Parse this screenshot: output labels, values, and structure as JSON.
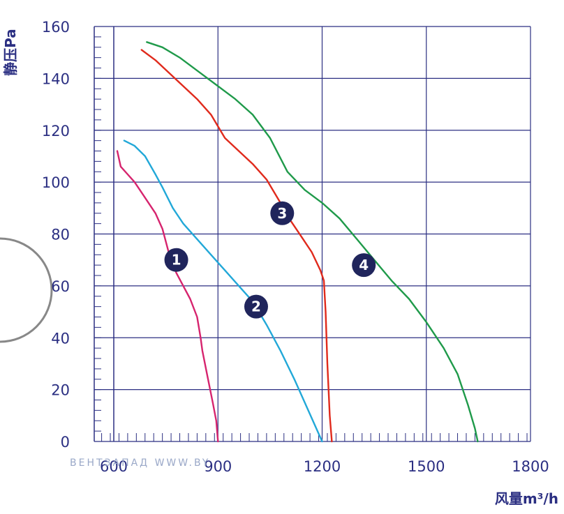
{
  "chart_data": {
    "type": "line",
    "ylabel": "静压Pa",
    "xlabel": "风量m³/h",
    "xlim": [
      600,
      1800
    ],
    "ylim": [
      0,
      160
    ],
    "x_ticks": [
      600,
      900,
      1200,
      1500,
      1800
    ],
    "y_ticks": [
      0,
      20,
      40,
      60,
      80,
      100,
      120,
      140,
      160
    ],
    "grid": true,
    "colors": {
      "axis_text": "#2b2f82",
      "grid": "#2b2f82",
      "marker_fill": "#20255c"
    },
    "series": [
      {
        "marker": "1",
        "color": "#d6246e",
        "marker_at": [
          780,
          70
        ],
        "points": [
          [
            610,
            112
          ],
          [
            620,
            106
          ],
          [
            640,
            103
          ],
          [
            660,
            100
          ],
          [
            690,
            94
          ],
          [
            720,
            88
          ],
          [
            740,
            82
          ],
          [
            760,
            72
          ],
          [
            780,
            65
          ],
          [
            800,
            60
          ],
          [
            820,
            55
          ],
          [
            840,
            48
          ],
          [
            850,
            40
          ],
          [
            855,
            35
          ],
          [
            870,
            25
          ],
          [
            885,
            15
          ],
          [
            895,
            8
          ],
          [
            900,
            0
          ]
        ]
      },
      {
        "marker": "2",
        "color": "#22a8d8",
        "marker_at": [
          1010,
          52
        ],
        "points": [
          [
            630,
            116
          ],
          [
            660,
            114
          ],
          [
            690,
            110
          ],
          [
            720,
            103
          ],
          [
            740,
            98
          ],
          [
            770,
            90
          ],
          [
            800,
            84
          ],
          [
            840,
            78
          ],
          [
            880,
            72
          ],
          [
            920,
            66
          ],
          [
            960,
            60
          ],
          [
            1000,
            54
          ],
          [
            1040,
            45
          ],
          [
            1080,
            35
          ],
          [
            1120,
            24
          ],
          [
            1160,
            12
          ],
          [
            1200,
            0
          ]
        ]
      },
      {
        "marker": "3",
        "color": "#e02a1c",
        "marker_at": [
          1085,
          88
        ],
        "points": [
          [
            680,
            151
          ],
          [
            720,
            147
          ],
          [
            760,
            142
          ],
          [
            800,
            137
          ],
          [
            840,
            132
          ],
          [
            880,
            126
          ],
          [
            920,
            117
          ],
          [
            960,
            112
          ],
          [
            1000,
            107
          ],
          [
            1040,
            101
          ],
          [
            1080,
            92
          ],
          [
            1110,
            85
          ],
          [
            1140,
            79
          ],
          [
            1170,
            73
          ],
          [
            1195,
            66
          ],
          [
            1205,
            62
          ],
          [
            1210,
            50
          ],
          [
            1215,
            30
          ],
          [
            1222,
            10
          ],
          [
            1228,
            0
          ]
        ]
      },
      {
        "marker": "4",
        "color": "#1f9a4a",
        "marker_at": [
          1320,
          68
        ],
        "points": [
          [
            695,
            154
          ],
          [
            740,
            152
          ],
          [
            790,
            148
          ],
          [
            840,
            143
          ],
          [
            900,
            137
          ],
          [
            950,
            132
          ],
          [
            1000,
            126
          ],
          [
            1050,
            117
          ],
          [
            1100,
            104
          ],
          [
            1150,
            97
          ],
          [
            1200,
            92
          ],
          [
            1250,
            86
          ],
          [
            1300,
            78
          ],
          [
            1350,
            70
          ],
          [
            1400,
            62
          ],
          [
            1450,
            55
          ],
          [
            1500,
            46
          ],
          [
            1550,
            36
          ],
          [
            1590,
            26
          ],
          [
            1620,
            14
          ],
          [
            1640,
            5
          ],
          [
            1648,
            0
          ]
        ]
      }
    ]
  },
  "watermark_text": "ВЕНТЗАПАД WWW.BY"
}
